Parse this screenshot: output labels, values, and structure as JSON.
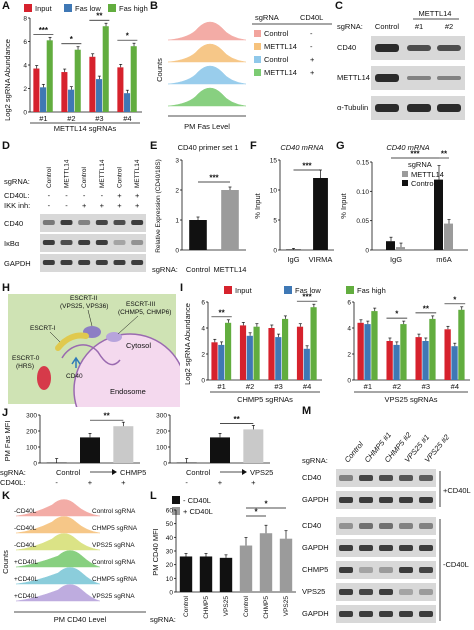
{
  "colors": {
    "input": "#d6222d",
    "fas_low": "#3f78b5",
    "fas_high": "#62ad3f",
    "black": "#111111",
    "gray": "#9b9b9b"
  },
  "panels": {
    "A": {
      "label": "A",
      "legend": [
        "Input",
        "Fas low",
        "Fas high"
      ],
      "ylabel": "Log2 sgRNA Abundance",
      "xgroup": "METTL14 sgRNAs",
      "categories": [
        "#1",
        "#2",
        "#3",
        "#4"
      ],
      "yticks": [
        "0",
        "2",
        "4",
        "6",
        "8"
      ],
      "sig": [
        "***",
        "*",
        "**",
        "*"
      ]
    },
    "B": {
      "label": "B",
      "ylabel": "Counts",
      "xlabel": "PM Fas Level",
      "header": [
        "sgRNA",
        "CD40L"
      ],
      "rows": [
        {
          "name": "Control",
          "cd40l": "-",
          "color": "#f2a49d"
        },
        {
          "name": "METTL14",
          "cd40l": "-",
          "color": "#f6c27c"
        },
        {
          "name": "Control",
          "cd40l": "+",
          "color": "#8fc8ea"
        },
        {
          "name": "METTL14",
          "cd40l": "+",
          "color": "#7ccb73"
        }
      ]
    },
    "C": {
      "label": "C",
      "top": "METTL14",
      "lanes_label": "sgRNA:",
      "lanes": [
        "Control",
        "#1",
        "#2"
      ],
      "rows": [
        "CD40",
        "METTL14",
        "α-Tubulin"
      ]
    },
    "D": {
      "label": "D",
      "lanes": [
        "Control",
        "METTL14",
        "Control",
        "METTL14",
        "Control",
        "METTL14"
      ],
      "row_labels": [
        "sgRNA:",
        "CD40L:",
        "IKK inh:"
      ],
      "cd40l": [
        "-",
        "-",
        "-",
        "-",
        "+",
        "+"
      ],
      "ikk": [
        "-",
        "-",
        "+",
        "+",
        "+",
        "+"
      ],
      "blots": [
        "CD40",
        "IκBα",
        "GAPDH"
      ]
    },
    "E": {
      "label": "E",
      "title": "CD40 primer set 1",
      "ylabel": "Relative Expression (CD40/18S)",
      "sgrna": "sgRNA:",
      "categories": [
        "Control",
        "METTL14"
      ],
      "sig": "***",
      "yticks": [
        "0",
        "1",
        "2",
        "3"
      ]
    },
    "F": {
      "label": "F",
      "title": "CD40 mRNA",
      "ylabel": "% Input",
      "categories": [
        "IgG",
        "VIRMA"
      ],
      "sig": "***",
      "yticks": [
        "0",
        "5",
        "10",
        "15"
      ]
    },
    "G": {
      "label": "G",
      "title": "CD40 mRNA",
      "ylabel": "% Input",
      "legend_title": "sgRNA",
      "legend": [
        "METTL14",
        "Control"
      ],
      "categories": [
        "IgG",
        "m6A"
      ],
      "sig": [
        "***",
        "**"
      ],
      "yticks": [
        "0",
        "0.05",
        "0.10",
        "0.15"
      ]
    },
    "H": {
      "label": "H",
      "escrt2": "ESCRT-II",
      "escrt2_sub": "(VPS25, VPS36)",
      "escrt3": "ESCRT-III",
      "escrt3_sub": "(CHMP5, CHMP6)",
      "escrt1": "ESCRT-I",
      "escrt0": "ESCRT-0",
      "escrt0_sub": "(HRS)",
      "cd40": "CD40",
      "cytosol": "Cytosol",
      "endosome": "Endosome"
    },
    "I": {
      "label": "I",
      "legend": [
        "Input",
        "Fas low",
        "Fas high"
      ],
      "ylabel": "Log2 sgRNA Abundance",
      "left_group": "CHMP5 sgRNAs",
      "right_group": "VPS25 sgRNAs",
      "categories": [
        "#1",
        "#2",
        "#3",
        "#4"
      ],
      "yticks": [
        "0",
        "2",
        "4",
        "6"
      ],
      "sig_left": [
        "**",
        "***"
      ],
      "sig_right": [
        "*",
        "**",
        "*"
      ]
    },
    "J": {
      "label": "J",
      "ylabel": "PM Fas MFI",
      "row1": "sgRNA:",
      "row2": "CD40L:",
      "left": {
        "target": "CHMP5",
        "ctrl": "Control",
        "cd40l": [
          "-",
          "+",
          "+"
        ],
        "sig": "**",
        "yticks": [
          "0",
          "100",
          "200",
          "300"
        ]
      },
      "right": {
        "target": "VPS25",
        "ctrl": "Control",
        "cd40l": [
          "-",
          "+",
          "+"
        ],
        "sig": "**",
        "yticks": [
          "0",
          "100",
          "200",
          "300"
        ]
      }
    },
    "K": {
      "label": "K",
      "ylabel": "Counts",
      "xlabel": "PM CD40 Level",
      "rows": [
        {
          "cd40l": "-CD40L",
          "sg": "Control sgRNA",
          "color": "#f2a49d"
        },
        {
          "cd40l": "-CD40L",
          "sg": "CHMP5 sgRNA",
          "color": "#f6c27c"
        },
        {
          "cd40l": "-CD40L",
          "sg": "VPS25 sgRNA",
          "color": "#d8e07a"
        },
        {
          "cd40l": "+CD40L",
          "sg": "Control sgRNA",
          "color": "#7ccb73"
        },
        {
          "cd40l": "+CD40L",
          "sg": "CHMP5 sgRNA",
          "color": "#7fc8d8"
        },
        {
          "cd40l": "+CD40L",
          "sg": "VPS25 sgRNA",
          "color": "#b7a4dc"
        }
      ]
    },
    "L": {
      "label": "L",
      "legend": [
        "- CD40L",
        "+ CD40L"
      ],
      "ylabel": "PM CD40 MFI",
      "sgrna": "sgRNA:",
      "categories": [
        "Control",
        "CHMP5",
        "VPS25",
        "Control",
        "CHMP5",
        "VPS25"
      ],
      "sig": [
        "*",
        "*"
      ],
      "yticks": [
        "0",
        "10",
        "20",
        "30",
        "40",
        "50",
        "60"
      ]
    },
    "M": {
      "label": "M",
      "sgrna": "sgRNA:",
      "lanes": [
        "Control",
        "CHMP5 #1",
        "CHMP5 #2",
        "VPS25 #1",
        "VPS25 #2"
      ],
      "top_rows": [
        "CD40",
        "GAPDH"
      ],
      "top_side": "+CD40L",
      "bottom_rows": [
        "CD40",
        "GAPDH",
        "CHMP5",
        "VPS25",
        "GAPDH"
      ],
      "bottom_side": "-CD40L"
    }
  },
  "chart_data": [
    {
      "panel": "A",
      "type": "bar",
      "categories": [
        "#1",
        "#2",
        "#3",
        "#4"
      ],
      "xlabel": "METTL14 sgRNAs",
      "ylabel": "Log2 sgRNA Abundance",
      "ylim": [
        0,
        8
      ],
      "series": [
        {
          "name": "Input",
          "values": [
            3.7,
            3.4,
            4.7,
            3.8
          ]
        },
        {
          "name": "Fas low",
          "values": [
            2.1,
            1.9,
            2.8,
            1.6
          ]
        },
        {
          "name": "Fas high",
          "values": [
            6.1,
            5.3,
            7.3,
            5.6
          ]
        }
      ]
    },
    {
      "panel": "E",
      "type": "bar",
      "categories": [
        "Control",
        "METTL14"
      ],
      "ylabel": "Relative Expression (CD40/18S)",
      "title": "CD40 primer set 1",
      "ylim": [
        0,
        3
      ],
      "values": [
        1.0,
        2.0
      ]
    },
    {
      "panel": "F",
      "type": "bar",
      "categories": [
        "IgG",
        "VIRMA"
      ],
      "ylabel": "% Input",
      "title": "CD40 mRNA",
      "ylim": [
        0,
        15
      ],
      "values": [
        0.1,
        12.0
      ]
    },
    {
      "panel": "G",
      "type": "bar",
      "categories": [
        "IgG",
        "m6A"
      ],
      "ylabel": "% Input",
      "title": "CD40 mRNA",
      "ylim": [
        0,
        0.15
      ],
      "series": [
        {
          "name": "Control",
          "values": [
            0.015,
            0.12
          ]
        },
        {
          "name": "METTL14",
          "values": [
            0.005,
            0.045
          ]
        }
      ]
    },
    {
      "panel": "I",
      "type": "bar",
      "categories": [
        "#1",
        "#2",
        "#3",
        "#4"
      ],
      "xlabel": "CHMP5 sgRNAs",
      "ylabel": "Log2 sgRNA Abundance",
      "ylim": [
        0,
        6
      ],
      "series": [
        {
          "name": "Input",
          "values": [
            2.9,
            4.2,
            4.0,
            4.1
          ]
        },
        {
          "name": "Fas low",
          "values": [
            2.7,
            3.4,
            3.3,
            2.4
          ]
        },
        {
          "name": "Fas high",
          "values": [
            4.4,
            4.1,
            4.7,
            5.6
          ]
        }
      ]
    },
    {
      "panel": "I",
      "type": "bar",
      "categories": [
        "#1",
        "#2",
        "#3",
        "#4"
      ],
      "xlabel": "VPS25 sgRNAs",
      "ylabel": "Log2 sgRNA Abundance",
      "ylim": [
        0,
        6
      ],
      "series": [
        {
          "name": "Input",
          "values": [
            4.4,
            3.0,
            3.3,
            3.9
          ]
        },
        {
          "name": "Fas low",
          "values": [
            4.3,
            2.7,
            3.0,
            2.6
          ]
        },
        {
          "name": "Fas high",
          "values": [
            5.3,
            4.3,
            4.7,
            5.4
          ]
        }
      ]
    },
    {
      "panel": "J",
      "type": "bar",
      "categories": [
        "Control -",
        "Control +",
        "CHMP5 +"
      ],
      "ylabel": "PM Fas MFI",
      "ylim": [
        0,
        300
      ],
      "values": [
        3,
        160,
        230
      ]
    },
    {
      "panel": "J",
      "type": "bar",
      "categories": [
        "Control -",
        "Control +",
        "VPS25 +"
      ],
      "ylabel": "PM Fas MFI",
      "ylim": [
        0,
        300
      ],
      "values": [
        3,
        160,
        210
      ]
    },
    {
      "panel": "L",
      "type": "bar",
      "categories": [
        "Control",
        "CHMP5",
        "VPS25",
        "Control",
        "CHMP5",
        "VPS25"
      ],
      "ylabel": "PM CD40 MFI",
      "ylim": [
        0,
        60
      ],
      "values": [
        26,
        26,
        25,
        34,
        43,
        39
      ]
    }
  ]
}
